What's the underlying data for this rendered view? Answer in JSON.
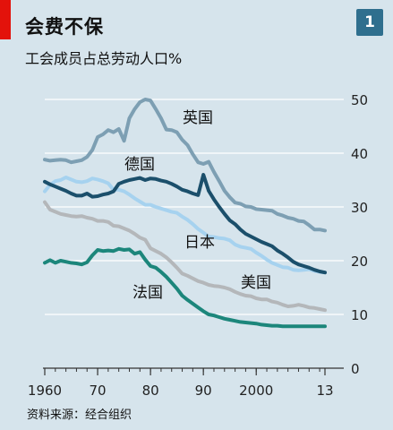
{
  "header": {
    "title": "会费不保",
    "subtitle": "工会成员占总劳动人口%",
    "badge": "1"
  },
  "footer": {
    "source": "资料来源：经合组织"
  },
  "colors": {
    "background": "#d6e4ec",
    "accent_red": "#e3120b",
    "badge": "#2f6f8e"
  },
  "chart_data": {
    "type": "line",
    "title": "会费不保",
    "subtitle": "工会成员占总劳动人口%",
    "xlabel": "",
    "ylabel": "",
    "xlim": [
      1960,
      2013
    ],
    "ylim": [
      0,
      50
    ],
    "x_ticks": [
      1960,
      1970,
      1980,
      1990,
      2000,
      2013
    ],
    "x_tick_labels": [
      "1960",
      "70",
      "80",
      "90",
      "2000",
      "13"
    ],
    "y_ticks": [
      0,
      10,
      20,
      30,
      40,
      50
    ],
    "y_tick_labels": [
      "0",
      "10",
      "20",
      "30",
      "40",
      "50"
    ],
    "grid": "horizontal",
    "x": [
      1960,
      1961,
      1962,
      1963,
      1964,
      1965,
      1966,
      1967,
      1968,
      1969,
      1970,
      1971,
      1972,
      1973,
      1974,
      1975,
      1976,
      1977,
      1978,
      1979,
      1980,
      1981,
      1982,
      1983,
      1984,
      1985,
      1986,
      1987,
      1988,
      1989,
      1990,
      1991,
      1992,
      1993,
      1994,
      1995,
      1996,
      1997,
      1998,
      1999,
      2000,
      2001,
      2002,
      2003,
      2004,
      2005,
      2006,
      2007,
      2008,
      2009,
      2010,
      2011,
      2012,
      2013
    ],
    "series": [
      {
        "name": "英国",
        "color": "#7d9fb3",
        "values": [
          38.8,
          38.6,
          38.7,
          38.8,
          38.7,
          38.3,
          38.5,
          38.7,
          39.3,
          40.6,
          43.0,
          43.5,
          44.3,
          43.9,
          44.5,
          42.3,
          46.5,
          48.2,
          49.5,
          50.0,
          49.8,
          48.2,
          46.5,
          44.4,
          44.3,
          43.9,
          42.5,
          41.5,
          39.8,
          38.3,
          38.0,
          38.4,
          36.5,
          34.8,
          33.0,
          31.8,
          30.8,
          30.6,
          30.1,
          30.0,
          29.6,
          29.5,
          29.4,
          29.3,
          28.7,
          28.4,
          28.0,
          27.8,
          27.4,
          27.3,
          26.6,
          25.8,
          25.8,
          25.6
        ]
      },
      {
        "name": "德国",
        "color": "#1b4f6b",
        "values": [
          34.7,
          34.2,
          33.8,
          33.4,
          33.0,
          32.5,
          32.1,
          32.1,
          32.5,
          31.9,
          32.0,
          32.3,
          32.5,
          32.9,
          34.3,
          34.7,
          35.0,
          35.2,
          35.4,
          35.0,
          35.3,
          35.2,
          34.9,
          34.7,
          34.3,
          33.8,
          33.2,
          32.9,
          32.5,
          32.2,
          36.0,
          33.0,
          31.4,
          30.0,
          28.7,
          27.5,
          26.8,
          25.8,
          25.0,
          24.5,
          24.0,
          23.5,
          23.1,
          22.7,
          21.9,
          21.3,
          20.6,
          19.8,
          19.3,
          19.0,
          18.7,
          18.3,
          18.0,
          17.8
        ]
      },
      {
        "name": "日本",
        "color": "#a6d2ef",
        "values": [
          32.9,
          34.1,
          34.8,
          35.0,
          35.5,
          35.1,
          34.7,
          34.6,
          34.8,
          35.3,
          35.1,
          34.8,
          34.4,
          33.2,
          33.2,
          32.9,
          32.3,
          31.6,
          31.0,
          30.4,
          30.4,
          30.0,
          29.7,
          29.4,
          29.1,
          28.9,
          28.2,
          27.6,
          26.8,
          25.9,
          25.2,
          24.5,
          24.4,
          24.2,
          24.1,
          23.8,
          23.0,
          22.6,
          22.4,
          22.2,
          21.5,
          20.9,
          20.2,
          19.6,
          19.2,
          18.8,
          18.7,
          18.3,
          18.2,
          18.3,
          18.4,
          18.1,
          17.9,
          17.8
        ]
      },
      {
        "name": "美国",
        "color": "#b4b7ba",
        "values": [
          30.9,
          29.5,
          29.1,
          28.7,
          28.5,
          28.3,
          28.2,
          28.3,
          28.0,
          27.8,
          27.4,
          27.4,
          27.2,
          26.5,
          26.4,
          26.0,
          25.6,
          25.0,
          24.3,
          23.9,
          22.3,
          21.8,
          21.3,
          20.6,
          19.7,
          18.7,
          17.6,
          17.2,
          16.7,
          16.2,
          15.9,
          15.5,
          15.3,
          15.2,
          15.0,
          14.7,
          14.2,
          13.8,
          13.5,
          13.4,
          13.0,
          12.8,
          12.8,
          12.4,
          12.2,
          11.8,
          11.5,
          11.6,
          11.8,
          11.6,
          11.3,
          11.2,
          11.0,
          10.8
        ]
      },
      {
        "name": "法国",
        "color": "#1c867b",
        "values": [
          19.6,
          20.1,
          19.6,
          20.0,
          19.8,
          19.6,
          19.5,
          19.3,
          19.7,
          21.0,
          22.0,
          21.8,
          21.9,
          21.8,
          22.2,
          22.0,
          22.1,
          21.3,
          21.6,
          20.2,
          19.0,
          18.7,
          17.9,
          17.0,
          15.9,
          14.8,
          13.5,
          12.7,
          12.0,
          11.3,
          10.6,
          10.0,
          9.8,
          9.5,
          9.2,
          9.0,
          8.8,
          8.6,
          8.5,
          8.4,
          8.3,
          8.1,
          8.0,
          7.9,
          7.9,
          7.8,
          7.8,
          7.8,
          7.8,
          7.8,
          7.8,
          7.8,
          7.8,
          7.8
        ]
      }
    ],
    "labels": [
      "英国",
      "德国",
      "日本",
      "美国",
      "法国"
    ]
  }
}
